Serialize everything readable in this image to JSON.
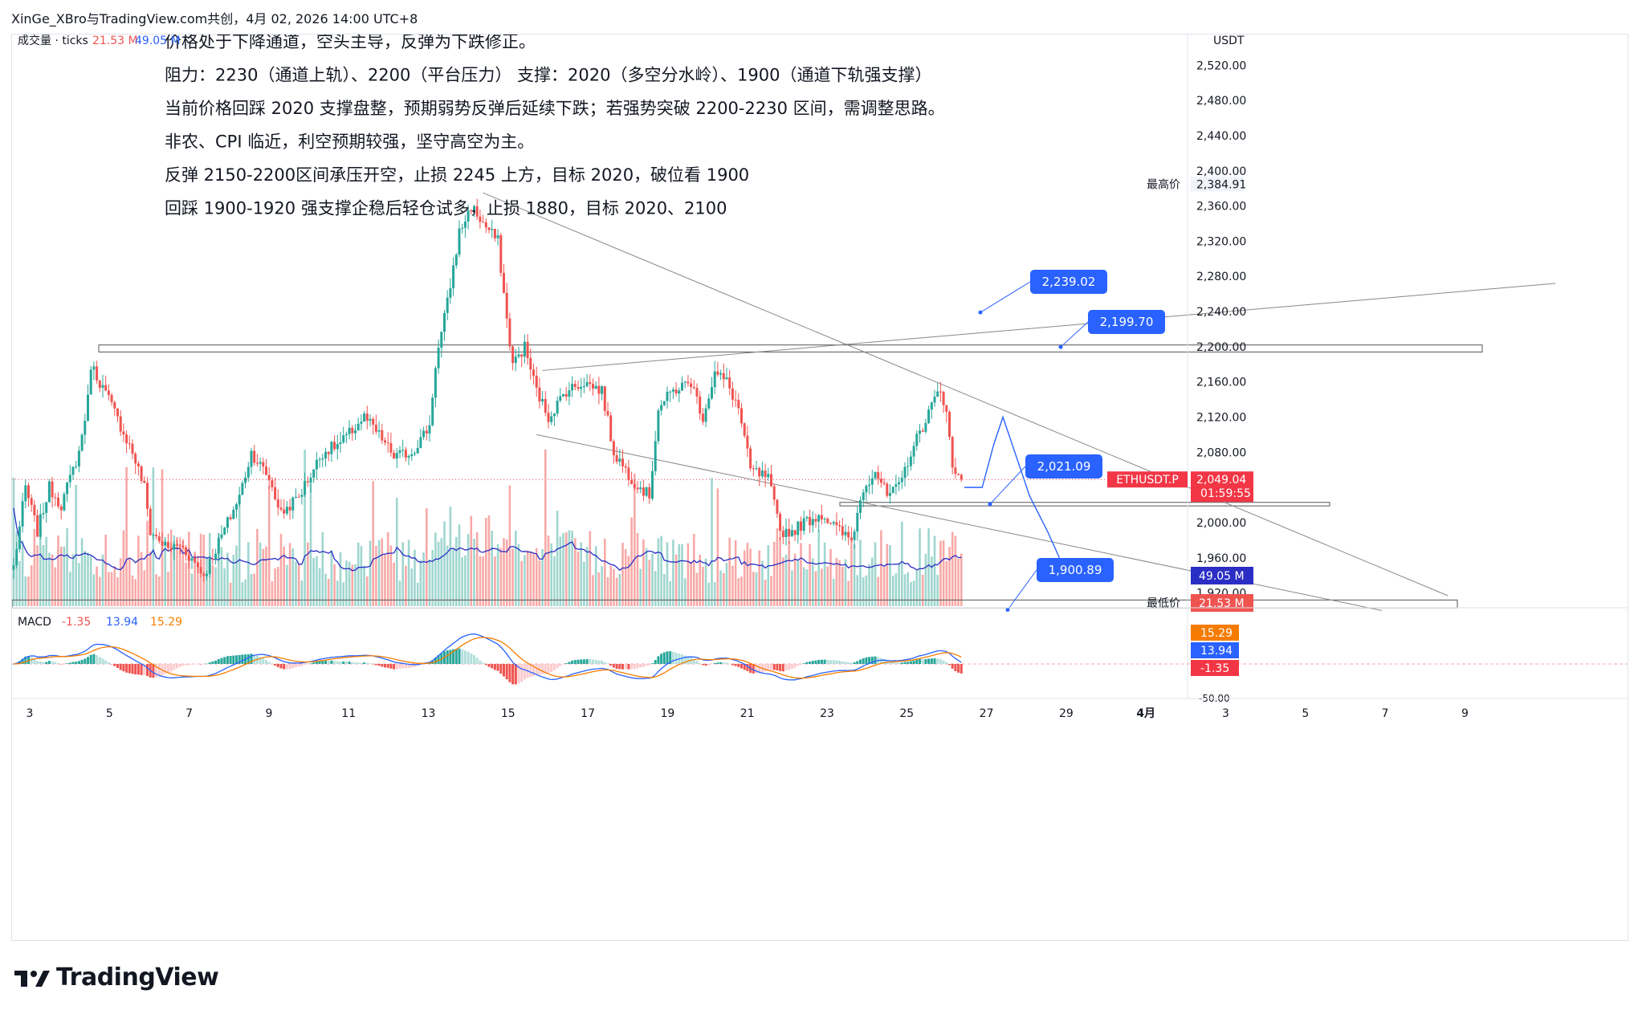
{
  "header": {
    "credit": "XinGe_XBro与TradingView.com共创，4月 02, 2026 14:00 UTC+8"
  },
  "brand": {
    "name": "TradingView"
  },
  "colors": {
    "up": "#26a69a",
    "down": "#ef5350",
    "macd": "#2962ff",
    "signal": "#f57c00",
    "price_tag": "#f23645",
    "callout": "#2962ff"
  },
  "chart_data": {
    "type": "candlestick",
    "symbol": "ETHUSDT.P",
    "currency": "USDT",
    "volume_legend": {
      "label": "成交量 · ticks",
      "v1": "21.53 M",
      "v2": "49.05 M"
    },
    "macd_legend": {
      "label": "MACD",
      "hist": "-1.35",
      "macd": "13.94",
      "signal": "15.29"
    },
    "annotations": [
      "价格处于下降通道，空头主导，反弹为下跌修正。",
      "阻力：2230（通道上轨）、2200（平台压力）   支撑：2020（多空分水岭）、1900（通道下轨强支撑）",
      "当前价格回踩 2020 支撑盘整，预期弱势反弹后延续下跌；若强势突破 2200-2230 区间，需调整思路。",
      "非农、CPI 临近，利空预期较强，坚守高空为主。",
      "反弹 2150-2200区间承压开空，止损 2245 上方，目标 2020，破位看 1900",
      "回踩 1900-1920 强支撑企稳后轻仓试多，止损 1880，目标 2020、2100"
    ],
    "y_ticks": [
      "2,520.00",
      "2,480.00",
      "2,440.00",
      "2,400.00",
      "2,360.00",
      "2,320.00",
      "2,280.00",
      "2,240.00",
      "2,200.00",
      "2,160.00",
      "2,120.00",
      "2,080.00",
      "2,040.00",
      "2,000.00",
      "1,960.00",
      "1,920.00"
    ],
    "y_tick_values": [
      2520,
      2480,
      2440,
      2400,
      2360,
      2320,
      2280,
      2240,
      2200,
      2160,
      2120,
      2080,
      2040,
      2000,
      1960,
      1920
    ],
    "ylim": [
      1905,
      2555
    ],
    "x_ticks": [
      "3",
      "5",
      "7",
      "9",
      "11",
      "13",
      "15",
      "17",
      "19",
      "21",
      "23",
      "25",
      "27",
      "29",
      "4月",
      "3",
      "5",
      "7",
      "9"
    ],
    "high_label": {
      "text": "最高价",
      "value": "2,384.91",
      "price": 2384.91
    },
    "low_label": {
      "text": "最低价",
      "value": "1,908.80",
      "price": 1908.8
    },
    "last_price": {
      "symbol": "ETHUSDT.P",
      "value": "2,049.04",
      "countdown": "01:59:55",
      "price": 2049.04
    },
    "level_labels": [
      {
        "value": "2,239.02",
        "price": 2239.02
      },
      {
        "value": "2,199.70",
        "price": 2199.7
      },
      {
        "value": "2,021.09",
        "price": 2021.09
      },
      {
        "value": "1,900.89",
        "price": 1900.89
      }
    ],
    "volume_tags": [
      "49.05 M",
      "21.53 M"
    ],
    "macd_tags": [
      "15.29",
      "13.94",
      "-1.35"
    ],
    "macd_axis_tick": "-50.00",
    "key_prices": [
      {
        "t": 0,
        "p": 1950
      },
      {
        "t": 4,
        "p": 2040
      },
      {
        "t": 8,
        "p": 1990
      },
      {
        "t": 12,
        "p": 2040
      },
      {
        "t": 16,
        "p": 2020
      },
      {
        "t": 22,
        "p": 2080
      },
      {
        "t": 25,
        "p": 2140
      },
      {
        "t": 26,
        "p": 2180
      },
      {
        "t": 32,
        "p": 2140
      },
      {
        "t": 36,
        "p": 2110
      },
      {
        "t": 40,
        "p": 2080
      },
      {
        "t": 44,
        "p": 2040
      },
      {
        "t": 46,
        "p": 1990
      },
      {
        "t": 52,
        "p": 1970
      },
      {
        "t": 56,
        "p": 1975
      },
      {
        "t": 62,
        "p": 1950
      },
      {
        "t": 64,
        "p": 1940
      },
      {
        "t": 70,
        "p": 1985
      },
      {
        "t": 76,
        "p": 2030
      },
      {
        "t": 80,
        "p": 2080
      },
      {
        "t": 86,
        "p": 2050
      },
      {
        "t": 90,
        "p": 2010
      },
      {
        "t": 96,
        "p": 2030
      },
      {
        "t": 104,
        "p": 2080
      },
      {
        "t": 110,
        "p": 2090
      },
      {
        "t": 118,
        "p": 2120
      },
      {
        "t": 124,
        "p": 2095
      },
      {
        "t": 128,
        "p": 2075
      },
      {
        "t": 134,
        "p": 2080
      },
      {
        "t": 140,
        "p": 2110
      },
      {
        "t": 142,
        "p": 2180
      },
      {
        "t": 146,
        "p": 2250
      },
      {
        "t": 150,
        "p": 2330
      },
      {
        "t": 154,
        "p": 2360
      },
      {
        "t": 158,
        "p": 2340
      },
      {
        "t": 163,
        "p": 2320
      },
      {
        "t": 166,
        "p": 2230
      },
      {
        "t": 168,
        "p": 2180
      },
      {
        "t": 172,
        "p": 2200
      },
      {
        "t": 176,
        "p": 2150
      },
      {
        "t": 180,
        "p": 2120
      },
      {
        "t": 186,
        "p": 2150
      },
      {
        "t": 192,
        "p": 2160
      },
      {
        "t": 198,
        "p": 2150
      },
      {
        "t": 202,
        "p": 2080
      },
      {
        "t": 208,
        "p": 2050
      },
      {
        "t": 214,
        "p": 2030
      },
      {
        "t": 217,
        "p": 2130
      },
      {
        "t": 222,
        "p": 2150
      },
      {
        "t": 228,
        "p": 2160
      },
      {
        "t": 232,
        "p": 2120
      },
      {
        "t": 236,
        "p": 2170
      },
      {
        "t": 240,
        "p": 2160
      },
      {
        "t": 244,
        "p": 2130
      },
      {
        "t": 248,
        "p": 2060
      },
      {
        "t": 254,
        "p": 2050
      },
      {
        "t": 258,
        "p": 1990
      },
      {
        "t": 262,
        "p": 1990
      },
      {
        "t": 266,
        "p": 2000
      },
      {
        "t": 272,
        "p": 2010
      },
      {
        "t": 278,
        "p": 1990
      },
      {
        "t": 282,
        "p": 1980
      },
      {
        "t": 286,
        "p": 2040
      },
      {
        "t": 290,
        "p": 2060
      },
      {
        "t": 294,
        "p": 2030
      },
      {
        "t": 298,
        "p": 2040
      },
      {
        "t": 302,
        "p": 2080
      },
      {
        "t": 306,
        "p": 2110
      },
      {
        "t": 310,
        "p": 2140
      },
      {
        "t": 312,
        "p": 2150
      },
      {
        "t": 314,
        "p": 2130
      },
      {
        "t": 316,
        "p": 2060
      },
      {
        "t": 319,
        "p": 2049
      }
    ]
  }
}
